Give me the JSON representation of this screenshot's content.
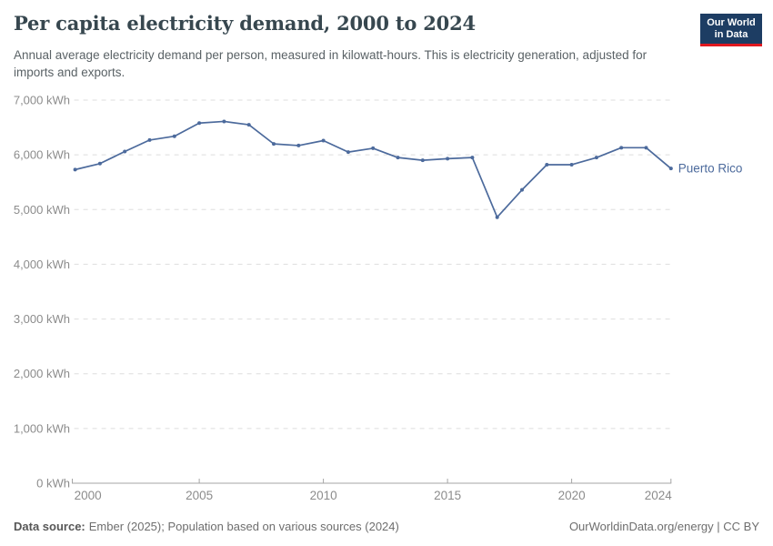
{
  "header": {
    "title": "Per capita electricity demand, 2000 to 2024",
    "subtitle": "Annual average electricity demand per person, measured in kilowatt-hours. This is electricity generation, adjusted for imports and exports."
  },
  "logo": {
    "line1": "Our World",
    "line2": "in Data",
    "bg_color": "#1d3d63",
    "accent_color": "#e0181f"
  },
  "chart_data": {
    "type": "line",
    "title": "Per capita electricity demand, 2000 to 2024",
    "unit": "kWh",
    "x": [
      2000,
      2001,
      2002,
      2003,
      2004,
      2005,
      2006,
      2007,
      2008,
      2009,
      2010,
      2011,
      2012,
      2013,
      2014,
      2015,
      2016,
      2017,
      2018,
      2019,
      2020,
      2021,
      2022,
      2023,
      2024
    ],
    "series": [
      {
        "name": "Puerto Rico",
        "color": "#4c6a9c",
        "values": [
          5730,
          5840,
          6060,
          6270,
          6340,
          6580,
          6610,
          6550,
          6200,
          6170,
          6260,
          6050,
          6120,
          5950,
          5900,
          5930,
          5950,
          4860,
          5360,
          5820,
          5820,
          5950,
          6130,
          6130,
          5750
        ]
      }
    ],
    "ylim": [
      0,
      7000
    ],
    "ytick_interval": 1000,
    "ytick_labels": [
      "0 kWh",
      "1,000 kWh",
      "2,000 kWh",
      "3,000 kWh",
      "4,000 kWh",
      "5,000 kWh",
      "6,000 kWh",
      "7,000 kWh"
    ],
    "xticks": [
      2000,
      2005,
      2010,
      2015,
      2020,
      2024
    ],
    "xtick_labels": [
      "2000",
      "2005",
      "2010",
      "2015",
      "2020",
      "2024"
    ],
    "grid": true,
    "legend_position": "end-of-line",
    "colors": {
      "gridline": "#dedede",
      "axis": "#a5a5a5",
      "tick_label": "#8c8c8c"
    }
  },
  "footer": {
    "source_label": "Data source:",
    "source_text": "Ember (2025); Population based on various sources (2024)",
    "credit": "OurWorldinData.org/energy | CC BY"
  }
}
